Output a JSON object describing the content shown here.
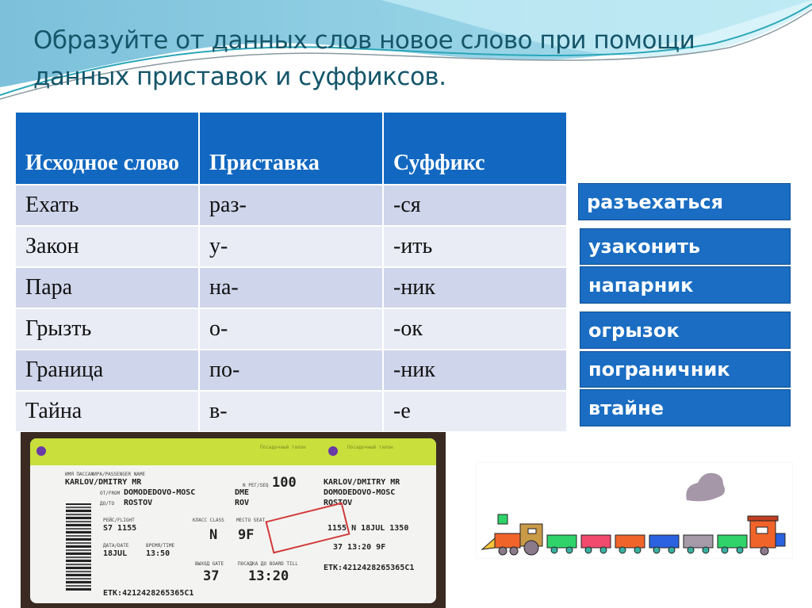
{
  "title": "Образуйте от данных слов новое слово при помощи данных приставок и суффиксов.",
  "table": {
    "headers": [
      "Исходное слово",
      "Приставка",
      "Суффикс"
    ],
    "rows": [
      [
        "Ехать",
        "раз-",
        "-ся"
      ],
      [
        "Закон",
        "у-",
        "-ить"
      ],
      [
        "Пара",
        "на-",
        "-ник"
      ],
      [
        "Грызть",
        "о-",
        "-ок"
      ],
      [
        "Граница",
        "по-",
        "-ник"
      ],
      [
        "Тайна",
        "в-",
        "-е"
      ]
    ]
  },
  "answers": [
    "разъехаться",
    "узаконить",
    "напарник",
    "огрызок",
    "пограничник",
    "втайне"
  ],
  "colors": {
    "header": "#1268c0",
    "answer_box": "#1a6dc2",
    "title": "#15566a"
  },
  "ticket": {
    "header_label": "Посадочный талон",
    "passenger_label": "ИМЯ ПАССАЖИРА/PASSENGER NAME",
    "passenger": "KARLOV/DMITRY MR",
    "seq_label": "N РЕГ/SEQ",
    "seq": "100",
    "from_label": "ОТ/FROM",
    "from": "DOMODEDOVO-MOSC",
    "from_code": "DME",
    "to_label": "ДО/TO",
    "to": "ROSTOV",
    "to_code": "ROV",
    "flight_label": "РЕЙС/FLIGHT",
    "flight": "S7 1155",
    "class_label": "КЛАСС CLASS",
    "class": "N",
    "seat_label": "МЕСТО SEAT",
    "seat": "9F",
    "date_label": "ДАТА/DATE",
    "date": "18JUL",
    "time_label": "ВРЕМЯ/TIME",
    "time": "13:50",
    "gate_label": "ВЫХОД GATE",
    "gate": "37",
    "board_label": "ПОСАДКА ДО BOARD TILL",
    "board": "13:20",
    "etk": "ETK:4212428265365C1",
    "stub_line": "1155 N 18JUL 1350",
    "stub_board": "37 13:20 9F"
  },
  "train": {
    "car_colors": [
      "#2fd36a",
      "#f04a6e",
      "#f0642a",
      "#2a62e0",
      "#a79aa8",
      "#2fd36a"
    ]
  }
}
